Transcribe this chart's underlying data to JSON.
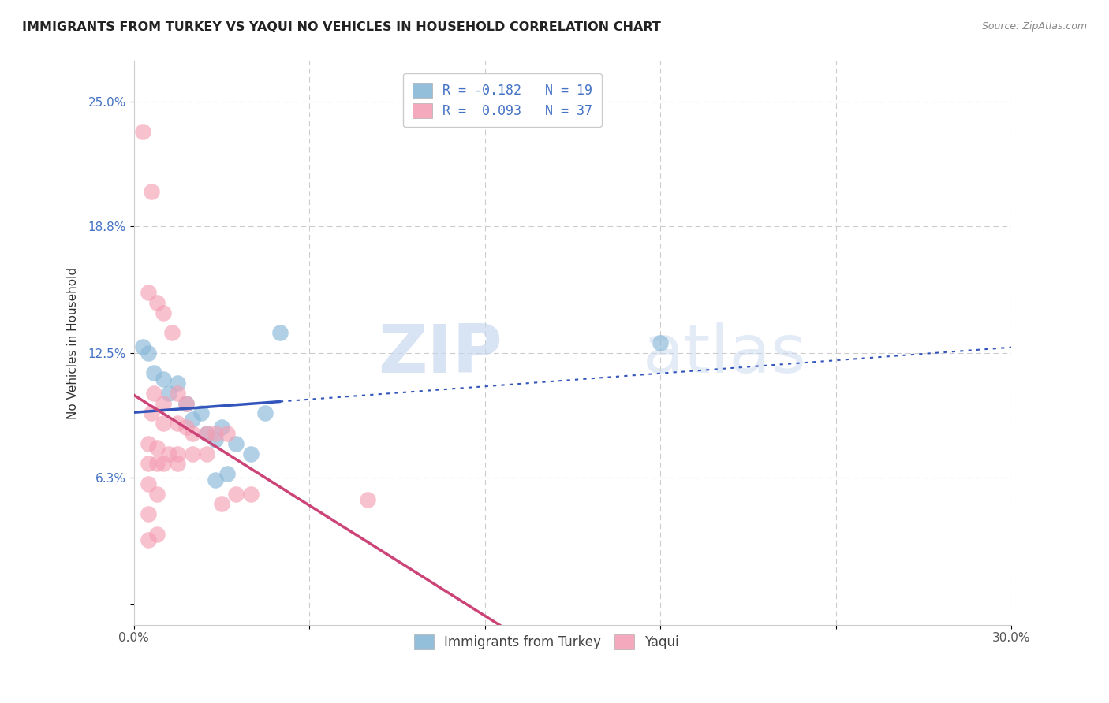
{
  "title": "IMMIGRANTS FROM TURKEY VS YAQUI NO VEHICLES IN HOUSEHOLD CORRELATION CHART",
  "source": "Source: ZipAtlas.com",
  "ylabel": "No Vehicles in Household",
  "xlim": [
    0.0,
    30.0
  ],
  "ylim": [
    -1.0,
    27.0
  ],
  "yticks": [
    0.0,
    6.3,
    12.5,
    18.8,
    25.0
  ],
  "ytick_labels": [
    "",
    "6.3%",
    "12.5%",
    "18.8%",
    "25.0%"
  ],
  "xticks": [
    0.0,
    6.0,
    12.0,
    18.0,
    24.0,
    30.0
  ],
  "xtick_labels": [
    "0.0%",
    "",
    "",
    "",
    "",
    "30.0%"
  ],
  "legend_entries": [
    {
      "label": "R = -0.182   N = 19",
      "color": "#aec6e8"
    },
    {
      "label": "R =  0.093   N = 37",
      "color": "#f4b8c1"
    }
  ],
  "legend_labels_bottom": [
    "Immigrants from Turkey",
    "Yaqui"
  ],
  "blue_color": "#89b8d8",
  "pink_color": "#f4a0b5",
  "blue_line_color": "#3355bb",
  "pink_line_color": "#cc4477",
  "watermark_zip": "ZIP",
  "watermark_atlas": "atlas",
  "blue_points": [
    [
      0.3,
      12.8
    ],
    [
      0.5,
      12.5
    ],
    [
      0.7,
      11.5
    ],
    [
      1.0,
      11.2
    ],
    [
      1.2,
      10.5
    ],
    [
      1.5,
      11.0
    ],
    [
      1.8,
      10.0
    ],
    [
      2.0,
      9.2
    ],
    [
      2.3,
      9.5
    ],
    [
      2.5,
      8.5
    ],
    [
      2.8,
      8.2
    ],
    [
      3.0,
      8.8
    ],
    [
      3.5,
      8.0
    ],
    [
      4.0,
      7.5
    ],
    [
      4.5,
      9.5
    ],
    [
      5.0,
      13.5
    ],
    [
      3.2,
      6.5
    ],
    [
      2.8,
      6.2
    ],
    [
      18.0,
      13.0
    ]
  ],
  "pink_points": [
    [
      0.3,
      23.5
    ],
    [
      0.6,
      20.5
    ],
    [
      0.5,
      15.5
    ],
    [
      0.8,
      15.0
    ],
    [
      1.0,
      14.5
    ],
    [
      1.3,
      13.5
    ],
    [
      0.7,
      10.5
    ],
    [
      1.0,
      10.0
    ],
    [
      1.5,
      10.5
    ],
    [
      1.8,
      10.0
    ],
    [
      0.6,
      9.5
    ],
    [
      1.0,
      9.0
    ],
    [
      1.5,
      9.0
    ],
    [
      1.8,
      8.8
    ],
    [
      2.0,
      8.5
    ],
    [
      2.5,
      8.5
    ],
    [
      0.5,
      8.0
    ],
    [
      0.8,
      7.8
    ],
    [
      1.2,
      7.5
    ],
    [
      1.5,
      7.5
    ],
    [
      2.0,
      7.5
    ],
    [
      2.5,
      7.5
    ],
    [
      0.5,
      7.0
    ],
    [
      0.8,
      7.0
    ],
    [
      1.0,
      7.0
    ],
    [
      1.5,
      7.0
    ],
    [
      2.8,
      8.5
    ],
    [
      3.2,
      8.5
    ],
    [
      3.5,
      5.5
    ],
    [
      4.0,
      5.5
    ],
    [
      0.5,
      6.0
    ],
    [
      0.8,
      5.5
    ],
    [
      3.0,
      5.0
    ],
    [
      0.5,
      4.5
    ],
    [
      8.0,
      5.2
    ],
    [
      0.8,
      3.5
    ],
    [
      0.5,
      3.2
    ]
  ],
  "blue_R": -0.182,
  "blue_N": 19,
  "pink_R": 0.093,
  "pink_N": 37,
  "blue_solid_end": 5.0,
  "grid_color": "#cccccc",
  "grid_style": "--"
}
